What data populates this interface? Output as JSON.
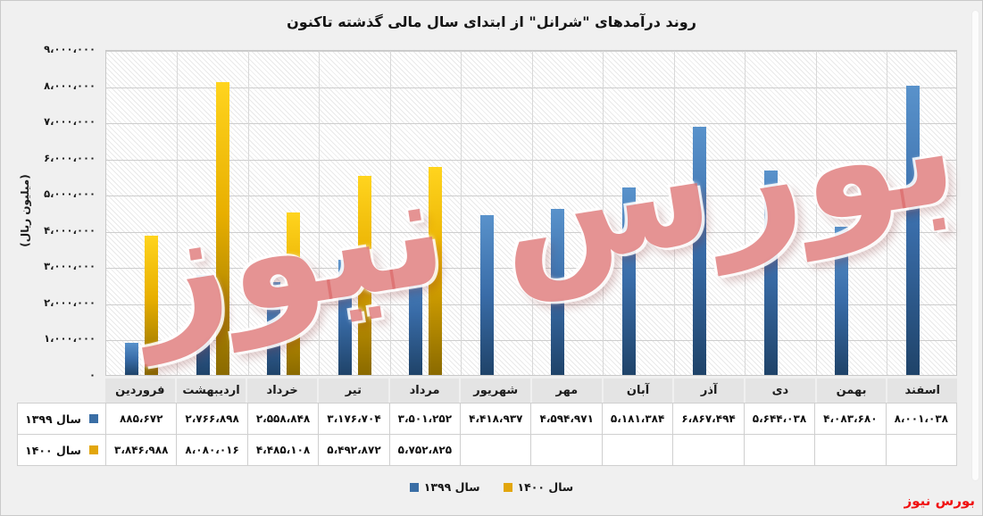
{
  "watermark": {
    "text": "بورس نیوز"
  },
  "brand": {
    "text": "بورس نیوز"
  },
  "chart_data": {
    "type": "bar",
    "title": "روند درآمدهای \"شرانل\" از ابتدای سال مالی گذشته تاکنون",
    "ylabel": "(میلیون ریال)",
    "xlabel": "",
    "ylim": [
      0,
      9000000
    ],
    "grid": true,
    "legend_position": "bottom",
    "categories": [
      "فروردین",
      "اردیبهشت",
      "خرداد",
      "تیر",
      "مرداد",
      "شهریور",
      "مهر",
      "آبان",
      "آذر",
      "دی",
      "بهمن",
      "اسفند"
    ],
    "ytick_labels": [
      "۰",
      "۱،۰۰۰،۰۰۰",
      "۲،۰۰۰،۰۰۰",
      "۳،۰۰۰،۰۰۰",
      "۴،۰۰۰،۰۰۰",
      "۵،۰۰۰،۰۰۰",
      "۶،۰۰۰،۰۰۰",
      "۷،۰۰۰،۰۰۰",
      "۸،۰۰۰،۰۰۰",
      "۹،۰۰۰،۰۰۰"
    ],
    "series": [
      {
        "name": "سال ۱۳۹۹",
        "color": "#3A6EA5",
        "values": [
          885672,
          2766898,
          2558848,
          3176704,
          3501252,
          4418937,
          4594971,
          5181384,
          6867494,
          5644038,
          4083680,
          8001038
        ],
        "labels": [
          "۸۸۵،۶۷۲",
          "۲،۷۶۶،۸۹۸",
          "۲،۵۵۸،۸۴۸",
          "۳،۱۷۶،۷۰۴",
          "۳،۵۰۱،۲۵۲",
          "۴،۴۱۸،۹۳۷",
          "۴،۵۹۴،۹۷۱",
          "۵،۱۸۱،۳۸۴",
          "۶،۸۶۷،۴۹۴",
          "۵،۶۴۴،۰۳۸",
          "۴،۰۸۳،۶۸۰",
          "۸،۰۰۱،۰۳۸"
        ]
      },
      {
        "name": "سال ۱۴۰۰",
        "color": "#E2A60C",
        "values": [
          3846988,
          8080016,
          4485108,
          5492872,
          5752825,
          null,
          null,
          null,
          null,
          null,
          null,
          null
        ],
        "labels": [
          "۳،۸۴۶،۹۸۸",
          "۸،۰۸۰،۰۱۶",
          "۴،۴۸۵،۱۰۸",
          "۵،۴۹۲،۸۷۲",
          "۵،۷۵۲،۸۲۵",
          "",
          "",
          "",
          "",
          "",
          "",
          ""
        ]
      }
    ]
  }
}
